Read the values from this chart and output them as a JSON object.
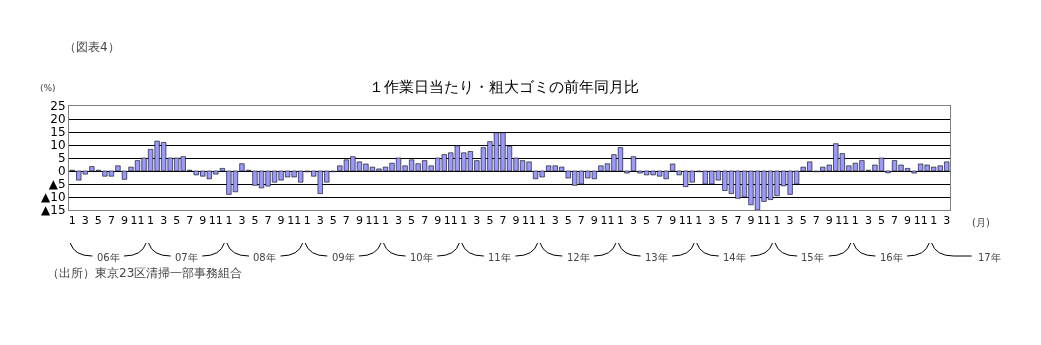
{
  "chart_data": {
    "type": "bar",
    "title": "１作業日当たり・粗大ゴミの前年同月比",
    "ylabel": "(%)",
    "xlabel": "(月)",
    "annotations": [
      "（図表4）",
      "（出所）東京23区清掃一部事務組合",
      "06年",
      "07年",
      "08年",
      "09年",
      "10年",
      "11年",
      "12年",
      "13年",
      "14年",
      "15年",
      "16年",
      "17年"
    ],
    "categories": [
      "1",
      null,
      "3",
      null,
      "5",
      null,
      "7",
      null,
      "9",
      null,
      "11",
      null,
      "1",
      null,
      "3",
      null,
      "5",
      null,
      "7",
      null,
      "9",
      null,
      "11",
      null,
      "1",
      null,
      "3",
      null,
      "5",
      null,
      "7",
      null,
      "9",
      null,
      "11",
      null,
      "1",
      null,
      "3",
      null,
      "5",
      null,
      "7",
      null,
      "9",
      null,
      "11",
      null,
      "1",
      null,
      "3",
      null,
      "5",
      null,
      "7",
      null,
      "9",
      null,
      "11",
      null,
      "1",
      null,
      "3",
      null,
      "5",
      null,
      "7",
      null,
      "9",
      null,
      "11",
      null,
      "1",
      null,
      "3",
      null,
      "5",
      null,
      "7",
      null,
      "9",
      null,
      "11",
      null,
      "1",
      null,
      "3",
      null,
      "5",
      null,
      "7",
      null,
      "9",
      null,
      "11",
      null,
      "1",
      null,
      "3",
      null,
      "5",
      null,
      "7",
      null,
      "9",
      null,
      "11",
      null,
      "1",
      null,
      "3",
      null,
      "5",
      null,
      "7",
      null,
      "9",
      null,
      "11",
      null,
      "1",
      null,
      "3",
      null,
      "5",
      null,
      "7",
      null,
      "9",
      null,
      "11",
      null,
      "1",
      null,
      "3"
    ],
    "series": [
      {
        "color": "#9999ff",
        "values": [
          0.3,
          -3.5,
          -1.2,
          1.7,
          0.3,
          -2,
          -2,
          2,
          -3.2,
          1.5,
          4,
          5,
          8.3,
          11.5,
          11,
          5,
          5,
          5.5,
          0.3,
          -1.5,
          -2,
          -3,
          -1.2,
          1,
          -9,
          -8,
          2.8,
          0.3,
          -5.5,
          -6.5,
          -5.8,
          -4.3,
          -3.5,
          -2.3,
          -2.3,
          -4.3,
          -0.3,
          -2,
          -8.7,
          -4.3,
          -0.3,
          2,
          4.3,
          5.5,
          3.5,
          2.7,
          1.5,
          0.8,
          1.5,
          3,
          5,
          2,
          4.3,
          2.8,
          4,
          2,
          5,
          6.3,
          7,
          9.7,
          7,
          7.5,
          4,
          9,
          11.3,
          14.7,
          14.7,
          9.5,
          5,
          4,
          3.5,
          -3,
          -2.3,
          2,
          2,
          1.5,
          -2.7,
          -5.5,
          -5,
          -2.7,
          -3,
          2,
          2.8,
          6.3,
          9,
          -0.8,
          5.5,
          -0.8,
          -1.5,
          -1.5,
          -2,
          -3,
          2.7,
          -1.5,
          -6,
          -4.3,
          -0.3,
          -5,
          -5,
          -3.5,
          -7.5,
          -8.7,
          -10.5,
          -10,
          -13,
          -15,
          -11.7,
          -11,
          -9.5,
          -5.7,
          -9,
          -5,
          1.5,
          3.5,
          -0.3,
          1.5,
          2.3,
          10.5,
          6.7,
          2,
          3,
          4,
          0.3,
          2.3,
          5,
          -0.7,
          4,
          2.3,
          1,
          -0.8,
          2.7,
          2.3,
          1.5,
          2,
          3.5
        ]
      }
    ],
    "ylim": [
      -15,
      25
    ],
    "yticks": [
      {
        "value": -15,
        "label": "▲15"
      },
      {
        "value": -10,
        "label": "▲10"
      },
      {
        "value": -5,
        "label": "▲5"
      },
      0,
      5,
      10,
      15,
      20,
      25
    ],
    "grid": "y"
  }
}
